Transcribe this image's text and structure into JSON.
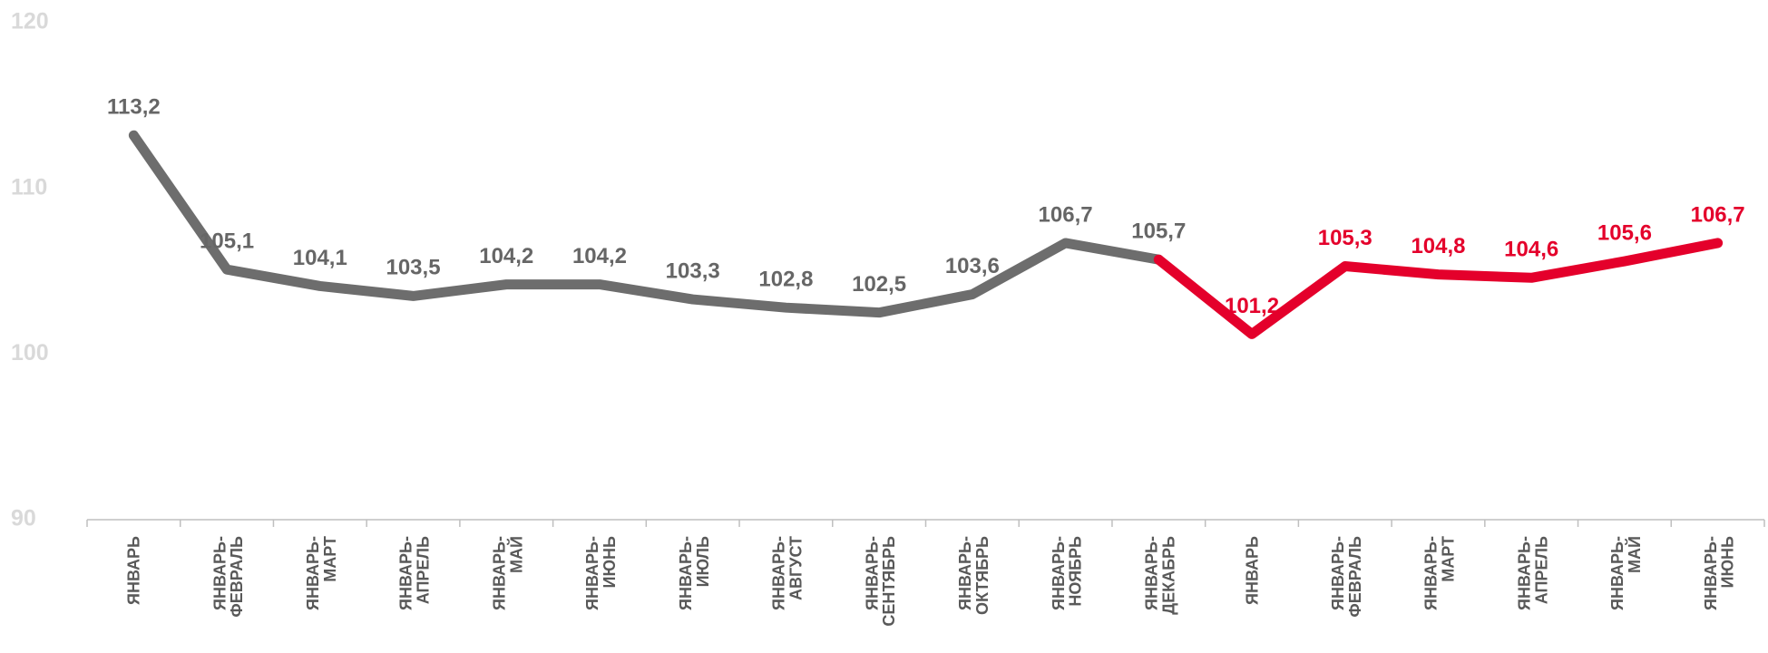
{
  "chart_data": {
    "type": "line",
    "categories": [
      "ЯНВАРЬ",
      "ЯНВАРЬ-ФЕВРАЛЬ",
      "ЯНВАРЬ-МАРТ",
      "ЯНВАРЬ-АПРЕЛЬ",
      "ЯНВАРЬ-МАЙ",
      "ЯНВАРЬ-ИЮНЬ",
      "ЯНВАРЬ-ИЮЛЬ",
      "ЯНВАРЬ-АВГУСТ",
      "ЯНВАРЬ-СЕНТЯБРЬ",
      "ЯНВАРЬ-ОКТЯБРЬ",
      "ЯНВАРЬ-НОЯБРЬ",
      "ЯНВАРЬ-ДЕКАБРЬ",
      "ЯНВАРЬ",
      "ЯНВАРЬ-ФЕВРАЛЬ",
      "ЯНВАРЬ-МАРТ",
      "ЯНВАРЬ-АПРЕЛЬ",
      "ЯНВАРЬ-МАЙ",
      "ЯНВАРЬ-ИЮНЬ"
    ],
    "series": [
      {
        "color": "#6d6d6d",
        "values": [
          113.2,
          105.1,
          104.1,
          103.5,
          104.2,
          104.2,
          103.3,
          102.8,
          102.5,
          103.6,
          106.7,
          105.7,
          null,
          null,
          null,
          null,
          null,
          null
        ],
        "value_labels": [
          "113,2",
          "105,1",
          "104,1",
          "103,5",
          "104,2",
          "104,2",
          "103,3",
          "102,8",
          "102,5",
          "103,6",
          "106,7",
          "105,7",
          null,
          null,
          null,
          null,
          null,
          null
        ]
      },
      {
        "color": "#e4002b",
        "values": [
          null,
          null,
          null,
          null,
          null,
          null,
          null,
          null,
          null,
          null,
          null,
          105.7,
          101.2,
          105.3,
          104.8,
          104.6,
          105.6,
          106.7
        ],
        "value_labels": [
          null,
          null,
          null,
          null,
          null,
          null,
          null,
          null,
          null,
          null,
          null,
          null,
          "101,2",
          "105,3",
          "104,8",
          "104,6",
          "105,6",
          "106,7"
        ]
      }
    ],
    "ylim": [
      90,
      120
    ],
    "yticks": [
      90,
      100,
      110,
      120
    ],
    "grid": false
  }
}
